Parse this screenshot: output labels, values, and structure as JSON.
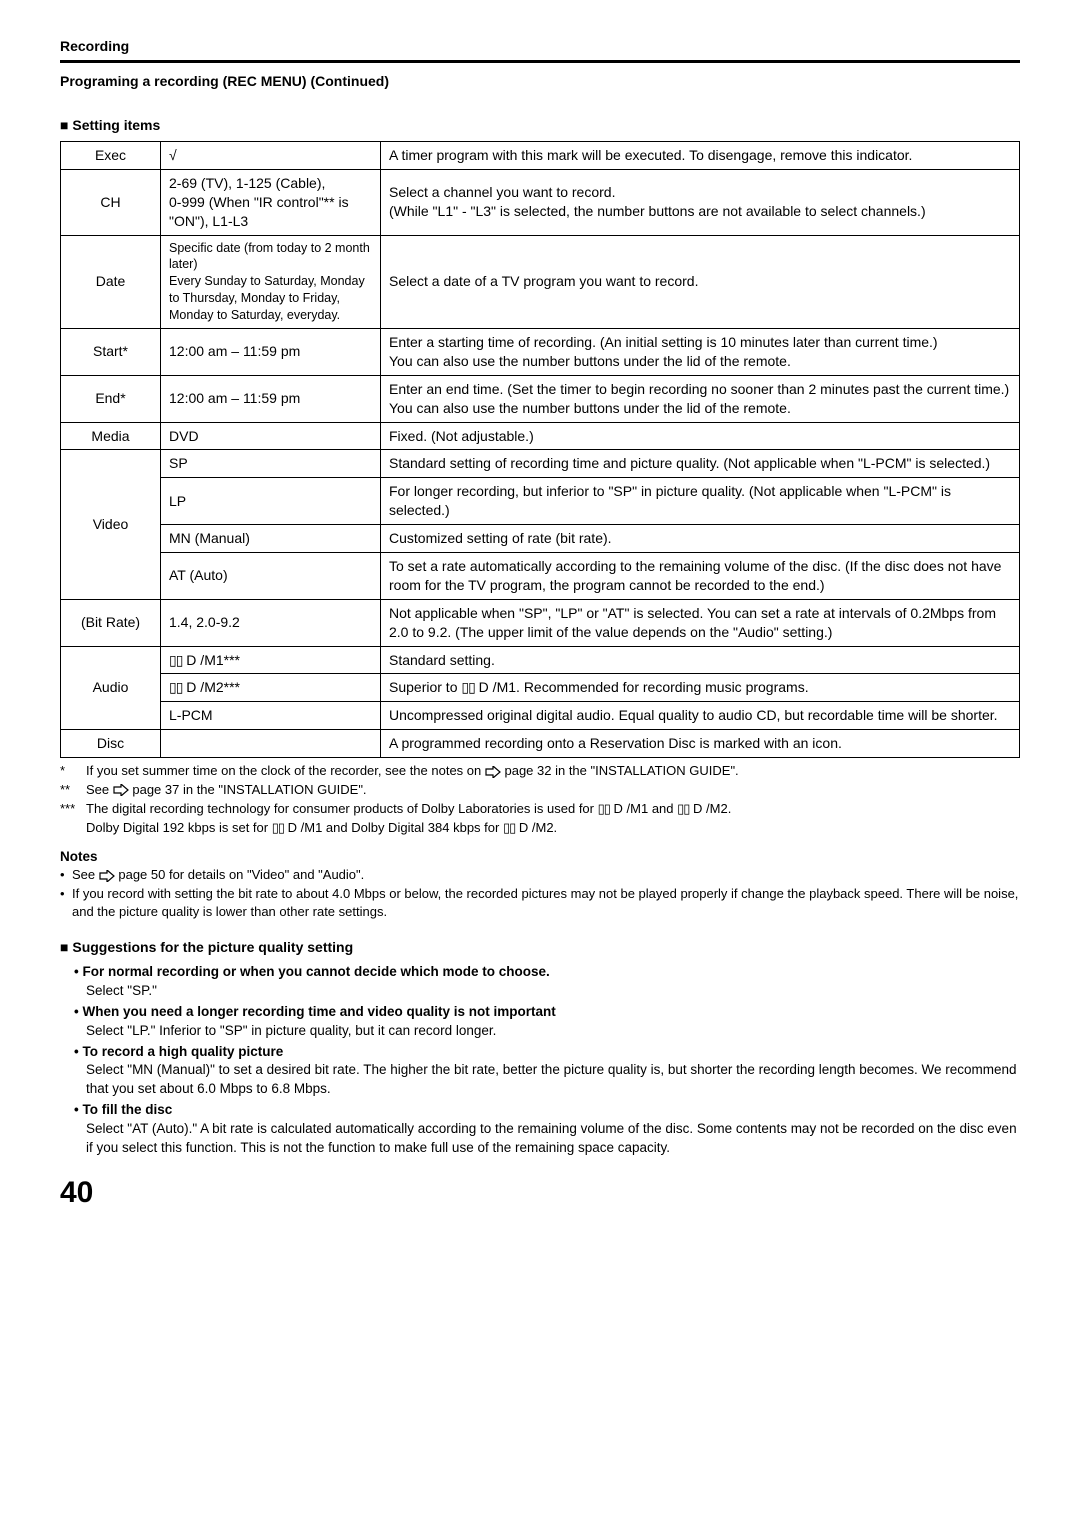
{
  "header": {
    "section": "Recording",
    "subtitle": "Programing a recording (REC MENU) (Continued)"
  },
  "setting_items_heading": "Setting items",
  "table": {
    "rows": [
      {
        "c1": "Exec",
        "c2": "√",
        "c3": "A timer program with this mark will be executed. To disengage, remove this indicator."
      },
      {
        "c1": "CH",
        "c2": "2-69 (TV), 1-125 (Cable),\n0-999 (When \"IR control\"** is \"ON\"), L1-L3",
        "c3": "Select a channel you want to record.\n(While \"L1\" - \"L3\" is selected, the number buttons are not available to select channels.)"
      },
      {
        "c1": "Date",
        "c2_small": "Specific date (from today to 2 month later)\nEvery Sunday to Saturday, Monday to Thursday, Monday to Friday, Monday to Saturday, everyday.",
        "c3": "Select a date of a TV program you want to record."
      },
      {
        "c1": "Start*",
        "c2": "12:00 am – 11:59 pm",
        "c3": "Enter a starting time of recording. (An initial setting is 10 minutes later than current time.)\nYou can also use the number buttons under the lid of the remote."
      },
      {
        "c1": "End*",
        "c2": "12:00 am – 11:59 pm",
        "c3": "Enter an end time. (Set the timer to begin recording no sooner than 2 minutes past the current time.)\nYou can also use the number buttons under the lid of the remote."
      },
      {
        "c1": "Media",
        "c2": "DVD",
        "c3": "Fixed. (Not adjustable.)"
      }
    ],
    "video": {
      "label": "Video",
      "rows": [
        {
          "c2": "SP",
          "c3": "Standard setting of recording time and picture quality. (Not applicable when \"L-PCM\" is selected.)"
        },
        {
          "c2": "LP",
          "c3": "For longer recording, but inferior to \"SP\" in picture quality.  (Not applicable when \"L-PCM\" is selected.)"
        },
        {
          "c2": "MN (Manual)",
          "c3": "Customized setting of rate (bit rate)."
        },
        {
          "c2": "AT (Auto)",
          "c3": "To set a rate automatically according to the remaining volume of the disc. (If the disc does not have room for the TV program, the program cannot be recorded to the end.)"
        }
      ]
    },
    "bitrate": {
      "c1": "(Bit Rate)",
      "c2": "1.4, 2.0-9.2",
      "c3": "Not applicable when \"SP\", \"LP\" or \"AT\" is selected. You can set a rate at intervals of 0.2Mbps from 2.0 to 9.2. (The upper limit of the value depends on the \"Audio\" setting.)"
    },
    "audio": {
      "label": "Audio",
      "rows": [
        {
          "c2_dolby": " D /M1***",
          "c3": "Standard setting."
        },
        {
          "c2_dolby": " D /M2***",
          "c3_pre": "Superior to ",
          "c3_dolby": " D /M1. ",
          "c3_post": "Recommended for recording music programs."
        },
        {
          "c2": "L-PCM",
          "c3": "Uncompressed original digital audio. Equal quality to audio CD, but recordable time will be shorter."
        }
      ]
    },
    "disc": {
      "c1": "Disc",
      "c3": "A programmed recording onto a Reservation Disc is marked with an icon."
    }
  },
  "footnotes": {
    "f1_pre": "If you set summer time on the clock of the recorder, see the notes on ",
    "f1_post": " page 32 in the \"INSTALLATION GUIDE\".",
    "f2_pre": "See ",
    "f2_post": " page 37 in the \"INSTALLATION GUIDE\".",
    "f3_a": "The digital recording technology for consumer products of Dolby Laboratories is used for ",
    "f3_b": " D /M1 and ",
    "f3_c": " D /M2.",
    "f3_d": "Dolby Digital 192 kbps is set for ",
    "f3_e": " D /M1 and Dolby Digital 384 kbps for ",
    "f3_f": " D /M2."
  },
  "notes": {
    "heading": "Notes",
    "n1_pre": "See ",
    "n1_post": " page 50 for details on \"Video\" and \"Audio\".",
    "n2": "If you record with setting the bit rate to about 4.0 Mbps or below, the recorded pictures may not be played properly if change the playback speed. There will be noise, and the picture quality is lower than other rate settings."
  },
  "suggestions": {
    "heading": "Suggestions for the picture quality setting",
    "items": [
      {
        "title": "For normal recording or when you cannot decide which mode to choose.",
        "body": "Select \"SP.\""
      },
      {
        "title": "When you need a longer recording time and video quality is not important",
        "body": "Select \"LP.\" Inferior to \"SP\" in picture quality, but it can record longer."
      },
      {
        "title": "To record a high quality picture",
        "body": "Select \"MN (Manual)\" to set a desired bit rate. The higher the bit rate, better the picture quality is, but shorter the recording length becomes. We recommend that you set about 6.0 Mbps to 6.8 Mbps."
      },
      {
        "title": "To fill the disc",
        "body": "Select \"AT (Auto).\" A bit rate is calculated automatically according to the remaining volume of the disc. Some contents may not be recorded on the disc even if you select this function. This is not the function to make full use of the remaining space capacity."
      }
    ]
  },
  "page_number": "40"
}
